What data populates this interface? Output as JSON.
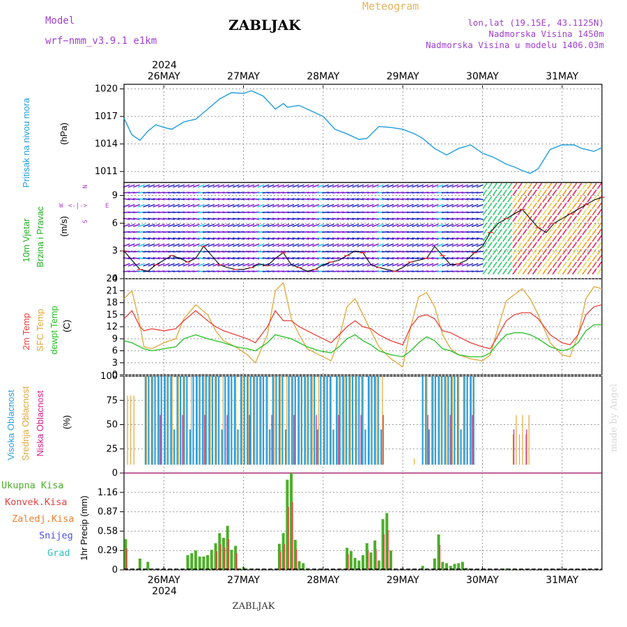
{
  "header": {
    "model_label": "Model",
    "model_name": "wrf−nmm_v3.9.1  e1km",
    "title": "ZABLJAK",
    "meteogram": "Meteogram",
    "lonlat": "lon,lat (19.15E, 43.1125N)",
    "elevation": "Nadmorska Visina 1450m",
    "model_elevation": "Nadmorska Visina u modelu 1406.03m",
    "year": "2024",
    "footer_title": "ZABLJAK",
    "credit": "made by Angel"
  },
  "colors": {
    "pressure": "#1e9de0",
    "wind_label": "#22b022",
    "wind_units": "#b040d0",
    "temp2m": "#e8403a",
    "sfc": "#e0a838",
    "dewpt": "#22c022",
    "cloud_high": "#2aa0e0",
    "cloud_mid": "#e0a838",
    "cloud_low": "#d8208a",
    "precip_total": "#4caf2a",
    "precip_conv": "#e84040",
    "precip_strat": "#f08030",
    "precip_snow": "#5050e0",
    "precip_grad": "#30c0c0"
  },
  "chart_data": [
    {
      "type": "line",
      "title": "Pritisak na nivou mora",
      "ylabel": "(hPa)",
      "ylim": [
        1009.8,
        1020.5
      ],
      "yticks": [
        "1011",
        "1014",
        "1017",
        "1020"
      ],
      "x_days": [
        "26MAY",
        "27MAY",
        "28MAY",
        "29MAY",
        "30MAY",
        "31MAY"
      ],
      "x_range_days": [
        25.5,
        31.5
      ],
      "series": [
        {
          "name": "Pritisak na nivou mora",
          "x": [
            25.5,
            25.6,
            25.7,
            25.8,
            25.9,
            26.0,
            26.1,
            26.25,
            26.4,
            26.55,
            26.7,
            26.85,
            27.0,
            27.1,
            27.25,
            27.4,
            27.5,
            27.55,
            27.7,
            27.85,
            28.0,
            28.15,
            28.3,
            28.45,
            28.55,
            28.7,
            28.85,
            29.0,
            29.15,
            29.25,
            29.4,
            29.55,
            29.7,
            29.85,
            30.0,
            30.15,
            30.3,
            30.4,
            30.5,
            30.6,
            30.7,
            30.85,
            31.0,
            31.15,
            31.25,
            31.4,
            31.5
          ],
          "values": [
            1016.8,
            1015.0,
            1014.4,
            1015.4,
            1016.1,
            1015.8,
            1015.6,
            1016.4,
            1016.7,
            1017.8,
            1018.9,
            1019.6,
            1019.5,
            1019.8,
            1019.2,
            1017.8,
            1018.4,
            1018.0,
            1018.2,
            1017.6,
            1017.0,
            1015.6,
            1015.1,
            1014.5,
            1014.6,
            1015.9,
            1015.8,
            1015.6,
            1015.1,
            1014.6,
            1013.5,
            1012.8,
            1013.5,
            1013.9,
            1013.0,
            1012.5,
            1011.8,
            1011.5,
            1011.1,
            1010.8,
            1011.3,
            1013.4,
            1013.9,
            1013.9,
            1013.5,
            1013.2,
            1013.6
          ]
        }
      ]
    },
    {
      "type": "line",
      "title": "10m Vjetar Brzina i Pravac",
      "ylabel": "(m/s)",
      "ylim": [
        0,
        10.4
      ],
      "yticks": [
        "0",
        "3",
        "6",
        "9"
      ],
      "compass": [
        "N",
        "E",
        "S",
        "W"
      ],
      "series": [
        {
          "name": "10m Vjetar",
          "x": [
            25.5,
            25.6,
            25.7,
            25.8,
            25.9,
            26.0,
            26.1,
            26.2,
            26.3,
            26.4,
            26.5,
            26.6,
            26.7,
            26.8,
            26.9,
            27.0,
            27.1,
            27.2,
            27.3,
            27.4,
            27.5,
            27.6,
            27.7,
            27.8,
            27.9,
            28.0,
            28.1,
            28.2,
            28.3,
            28.4,
            28.5,
            28.6,
            28.7,
            28.8,
            28.9,
            29.0,
            29.1,
            29.2,
            29.3,
            29.4,
            29.5,
            29.6,
            29.7,
            29.8,
            29.9,
            30.0,
            30.1,
            30.2,
            30.3,
            30.4,
            30.5,
            30.6,
            30.7,
            30.8,
            30.9,
            31.0,
            31.1,
            31.2,
            31.3,
            31.4,
            31.5
          ],
          "values": [
            3.0,
            2.0,
            1.0,
            0.8,
            1.5,
            2.0,
            2.5,
            2.2,
            1.8,
            2.2,
            3.5,
            2.5,
            1.5,
            1.2,
            1.0,
            1.0,
            1.2,
            1.6,
            1.4,
            2.2,
            2.8,
            1.5,
            1.2,
            0.8,
            1.0,
            1.5,
            1.8,
            2.0,
            2.5,
            3.0,
            2.8,
            1.5,
            1.2,
            1.0,
            0.8,
            1.2,
            1.8,
            2.0,
            2.2,
            3.5,
            2.5,
            1.5,
            1.6,
            2.0,
            2.8,
            3.5,
            5.0,
            6.0,
            6.5,
            7.0,
            7.5,
            6.5,
            5.5,
            5.0,
            6.0,
            6.5,
            7.0,
            7.5,
            8.0,
            8.5,
            8.8
          ]
        }
      ]
    },
    {
      "type": "line",
      "title": "2m Temp / SFC Temp / dewpt Temp",
      "ylabel": "(C)",
      "ylim": [
        0,
        24
      ],
      "yticks": [
        "0",
        "3",
        "6",
        "9",
        "12",
        "15",
        "18",
        "21",
        "24"
      ],
      "x": [
        25.5,
        25.6,
        25.7,
        25.75,
        25.85,
        26.0,
        26.15,
        26.25,
        26.4,
        26.55,
        26.65,
        26.75,
        26.9,
        27.05,
        27.15,
        27.3,
        27.4,
        27.5,
        27.6,
        27.7,
        27.8,
        27.95,
        28.1,
        28.2,
        28.3,
        28.4,
        28.5,
        28.6,
        28.7,
        28.85,
        29.0,
        29.1,
        29.2,
        29.3,
        29.4,
        29.5,
        29.6,
        29.7,
        29.85,
        30.0,
        30.1,
        30.2,
        30.3,
        30.4,
        30.5,
        30.6,
        30.7,
        30.85,
        31.0,
        31.1,
        31.2,
        31.3,
        31.4,
        31.5
      ],
      "series": [
        {
          "name": "2m Temp",
          "values": [
            14.0,
            16.0,
            12.0,
            11.0,
            11.5,
            11.0,
            11.5,
            13.5,
            16.0,
            13.5,
            12.0,
            11.0,
            10.0,
            9.0,
            8.0,
            12.0,
            16.0,
            13.5,
            13.5,
            12.0,
            11.0,
            9.5,
            8.0,
            10.0,
            12.0,
            13.5,
            12.0,
            11.5,
            10.0,
            8.5,
            7.5,
            12.0,
            14.5,
            15.0,
            14.0,
            11.0,
            10.5,
            9.5,
            8.0,
            7.0,
            6.5,
            10.0,
            13.5,
            15.0,
            15.5,
            15.5,
            14.0,
            10.0,
            8.0,
            7.5,
            10.0,
            15.0,
            17.0,
            17.5
          ]
        },
        {
          "name": "SFC Temp",
          "values": [
            19.0,
            21.0,
            12.5,
            7.0,
            6.5,
            8.0,
            9.0,
            14.0,
            17.5,
            15.0,
            11.0,
            8.5,
            7.0,
            5.0,
            3.0,
            10.0,
            21.0,
            23.0,
            14.0,
            10.0,
            6.5,
            5.0,
            3.5,
            9.0,
            17.0,
            19.0,
            15.0,
            11.0,
            7.0,
            4.0,
            2.0,
            12.0,
            19.5,
            20.5,
            17.0,
            10.0,
            6.5,
            5.0,
            4.0,
            3.5,
            5.0,
            12.0,
            18.5,
            20.0,
            21.5,
            19.0,
            15.0,
            8.0,
            5.0,
            4.5,
            10.0,
            19.0,
            22.0,
            21.5
          ]
        },
        {
          "name": "dewpt Temp",
          "values": [
            8.5,
            8.0,
            7.0,
            6.5,
            6.0,
            6.5,
            7.0,
            9.0,
            10.0,
            9.0,
            8.5,
            8.0,
            7.0,
            6.5,
            6.0,
            8.0,
            10.0,
            9.5,
            9.0,
            8.0,
            7.0,
            6.0,
            5.5,
            7.0,
            9.0,
            10.0,
            8.5,
            7.5,
            6.0,
            5.0,
            4.5,
            6.0,
            8.0,
            9.5,
            8.5,
            6.5,
            6.0,
            5.0,
            4.5,
            4.5,
            5.5,
            8.0,
            10.0,
            10.5,
            10.5,
            10.0,
            9.0,
            7.0,
            6.0,
            6.5,
            8.0,
            11.0,
            12.5,
            12.5
          ]
        }
      ]
    },
    {
      "type": "bar",
      "title": "Visoka / Srednja / Niska Oblacnost",
      "ylabel": "(%)",
      "ylim": [
        0,
        100
      ],
      "yticks": [
        "0",
        "25",
        "50",
        "75",
        "100"
      ],
      "series": [
        {
          "name": "Visoka Oblacnost"
        },
        {
          "name": "Srednja Oblacnost"
        },
        {
          "name": "Niska Oblacnost"
        }
      ]
    },
    {
      "type": "bar",
      "title": "1hr Precip",
      "ylabel": "1hr Precip (mm)",
      "ylim": [
        0,
        1.45
      ],
      "yticks": [
        "0",
        "0.29",
        "0.58",
        "0.87",
        "1.16"
      ],
      "legend": [
        "Ukupna Kisa",
        "Konvek.Kisa",
        "Zaledj.Kisa",
        "Snijeg",
        "Grad"
      ],
      "series": [
        {
          "name": "Ukupna Kisa",
          "x": [
            25.52,
            25.7,
            25.8,
            26.3,
            26.35,
            26.4,
            26.45,
            26.5,
            26.55,
            26.6,
            26.65,
            26.7,
            26.75,
            26.8,
            26.85,
            26.9,
            27.0,
            27.45,
            27.5,
            27.55,
            27.6,
            27.65,
            27.7,
            27.75,
            27.8,
            28.3,
            28.35,
            28.4,
            28.45,
            28.5,
            28.55,
            28.6,
            28.65,
            28.7,
            28.75,
            28.8,
            28.85,
            29.25,
            29.4,
            29.45,
            29.5,
            29.55,
            29.6,
            29.65,
            29.7,
            29.75,
            29.8,
            30.3,
            30.4
          ],
          "values": [
            0.46,
            0.17,
            0.12,
            0.22,
            0.25,
            0.29,
            0.2,
            0.2,
            0.22,
            0.3,
            0.4,
            0.55,
            0.48,
            0.66,
            0.3,
            0.36,
            0.04,
            0.39,
            0.55,
            1.35,
            1.45,
            0.45,
            0.13,
            0.1,
            0.02,
            0.33,
            0.28,
            0.18,
            0.14,
            0.22,
            0.4,
            0.26,
            0.44,
            0.14,
            0.76,
            0.85,
            0.29,
            0.06,
            0.17,
            0.53,
            0.12,
            0.1,
            0.06,
            0.09,
            0.1,
            0.12,
            0.03,
            0.02,
            0.02
          ]
        }
      ]
    }
  ]
}
